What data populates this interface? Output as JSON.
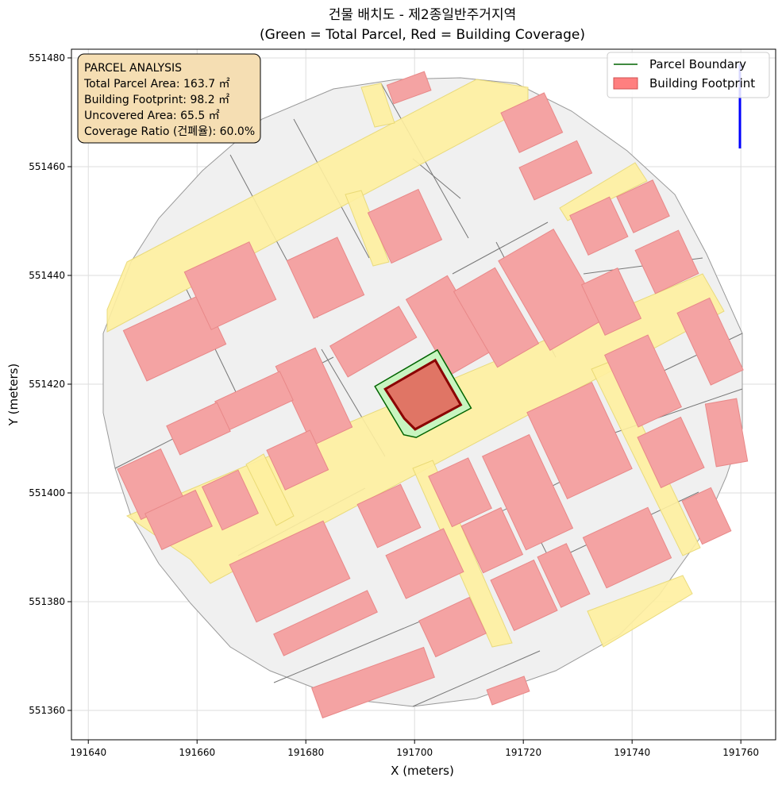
{
  "chart_data": {
    "type": "polygon",
    "title": "건물 배치도 - 제2종일반주거지역",
    "subtitle": "(Green = Total Parcel, Red = Building Coverage)",
    "x_label": "X (meters)",
    "y_label": "Y (meters)",
    "xlim": [
      191636.9,
      191766.4
    ],
    "ylim": [
      551354.6,
      551481.6
    ],
    "xticks": [
      191640,
      191660,
      191680,
      191700,
      191720,
      191740,
      191760
    ],
    "yticks": [
      551360,
      551380,
      551400,
      551420,
      551440,
      551460,
      551480
    ],
    "grid": true,
    "legend": "upper right",
    "annotation": [
      "PARCEL ANALYSIS",
      "Total Parcel Area: 163.7 ㎡",
      "Building Footprint: 98.2 ㎡",
      "Uncovered Area: 65.5 ㎡",
      "Coverage Ratio (건폐율): 60.0%"
    ],
    "series": [
      {
        "name": "Parcel Boundary",
        "color": "#006400",
        "x": [
          191692.7,
          191704.2,
          191710.4,
          191700.3,
          191698.0
        ],
        "y": [
          551419.6,
          551426.3,
          551415.6,
          551410.2,
          551410.7
        ]
      },
      {
        "name": "Building Footprint",
        "color": "#ff7f7f",
        "x": [
          191694.6,
          191703.8,
          191708.5,
          191700.1,
          191698.1
        ],
        "y": [
          551419.1,
          551424.4,
          551416.2,
          551411.7,
          551413.7
        ]
      }
    ]
  }
}
